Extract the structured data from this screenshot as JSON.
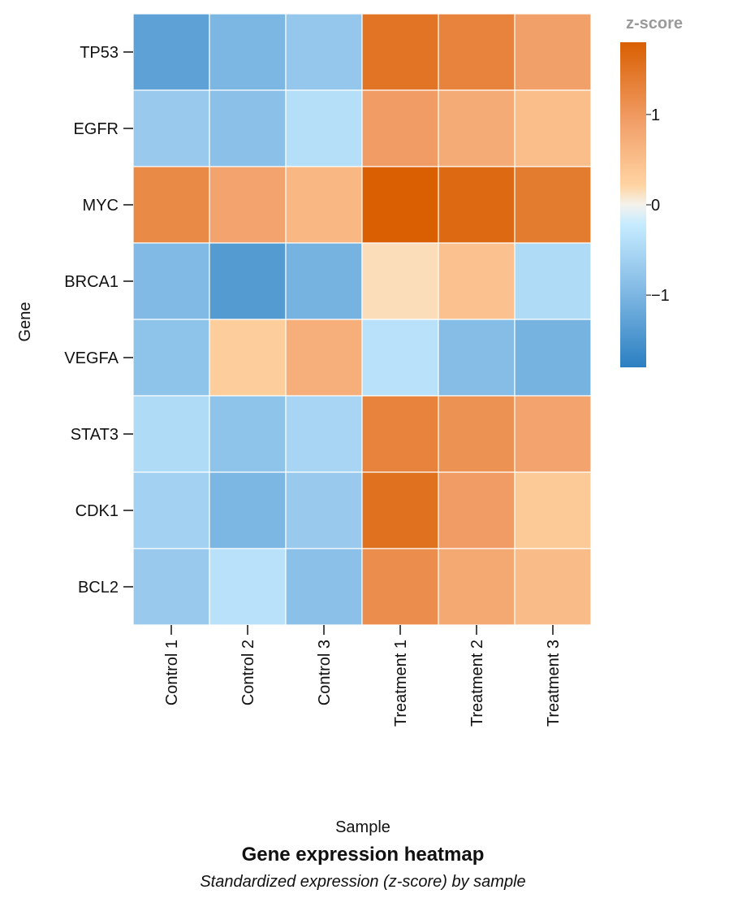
{
  "chart_data": {
    "type": "heatmap",
    "title": "Gene expression heatmap",
    "subtitle": "Standardized expression (z-score) by sample",
    "xlabel": "Sample",
    "ylabel": "Gene",
    "x_categories": [
      "Control 1",
      "Control 2",
      "Control 3",
      "Treatment 1",
      "Treatment 2",
      "Treatment 3"
    ],
    "y_categories": [
      "TP53",
      "EGFR",
      "MYC",
      "BRCA1",
      "VEGFA",
      "STAT3",
      "CDK1",
      "BCL2"
    ],
    "values": [
      [
        -1.3,
        -1.0,
        -0.75,
        1.5,
        1.3,
        0.9
      ],
      [
        -0.7,
        -0.85,
        -0.4,
        0.95,
        0.75,
        0.5
      ],
      [
        1.2,
        0.85,
        0.6,
        1.85,
        1.65,
        1.4
      ],
      [
        -0.95,
        -1.4,
        -1.05,
        0.15,
        0.45,
        -0.45
      ],
      [
        -0.8,
        0.3,
        0.7,
        -0.35,
        -0.9,
        -1.05
      ],
      [
        -0.45,
        -0.8,
        -0.55,
        1.3,
        1.1,
        0.85
      ],
      [
        -0.6,
        -1.0,
        -0.7,
        1.55,
        0.95,
        0.35
      ],
      [
        -0.7,
        -0.35,
        -0.85,
        1.15,
        0.8,
        0.55
      ]
    ],
    "legend": {
      "title": "z-score",
      "ticks": [
        1,
        0,
        -1
      ],
      "tick_labels": [
        "1",
        "0",
        "−1"
      ],
      "range": [
        -1.8,
        1.8
      ],
      "placement": "top-right"
    },
    "colormap": {
      "low": "#2b7fc1",
      "low_mid": "#86bde6",
      "near_zero_low": "#c6ebff",
      "mid": "#f4f2ec",
      "near_zero_high": "#ffd4a2",
      "high_mid": "#f2a06a",
      "high": "#d95f02"
    },
    "grid": false
  }
}
